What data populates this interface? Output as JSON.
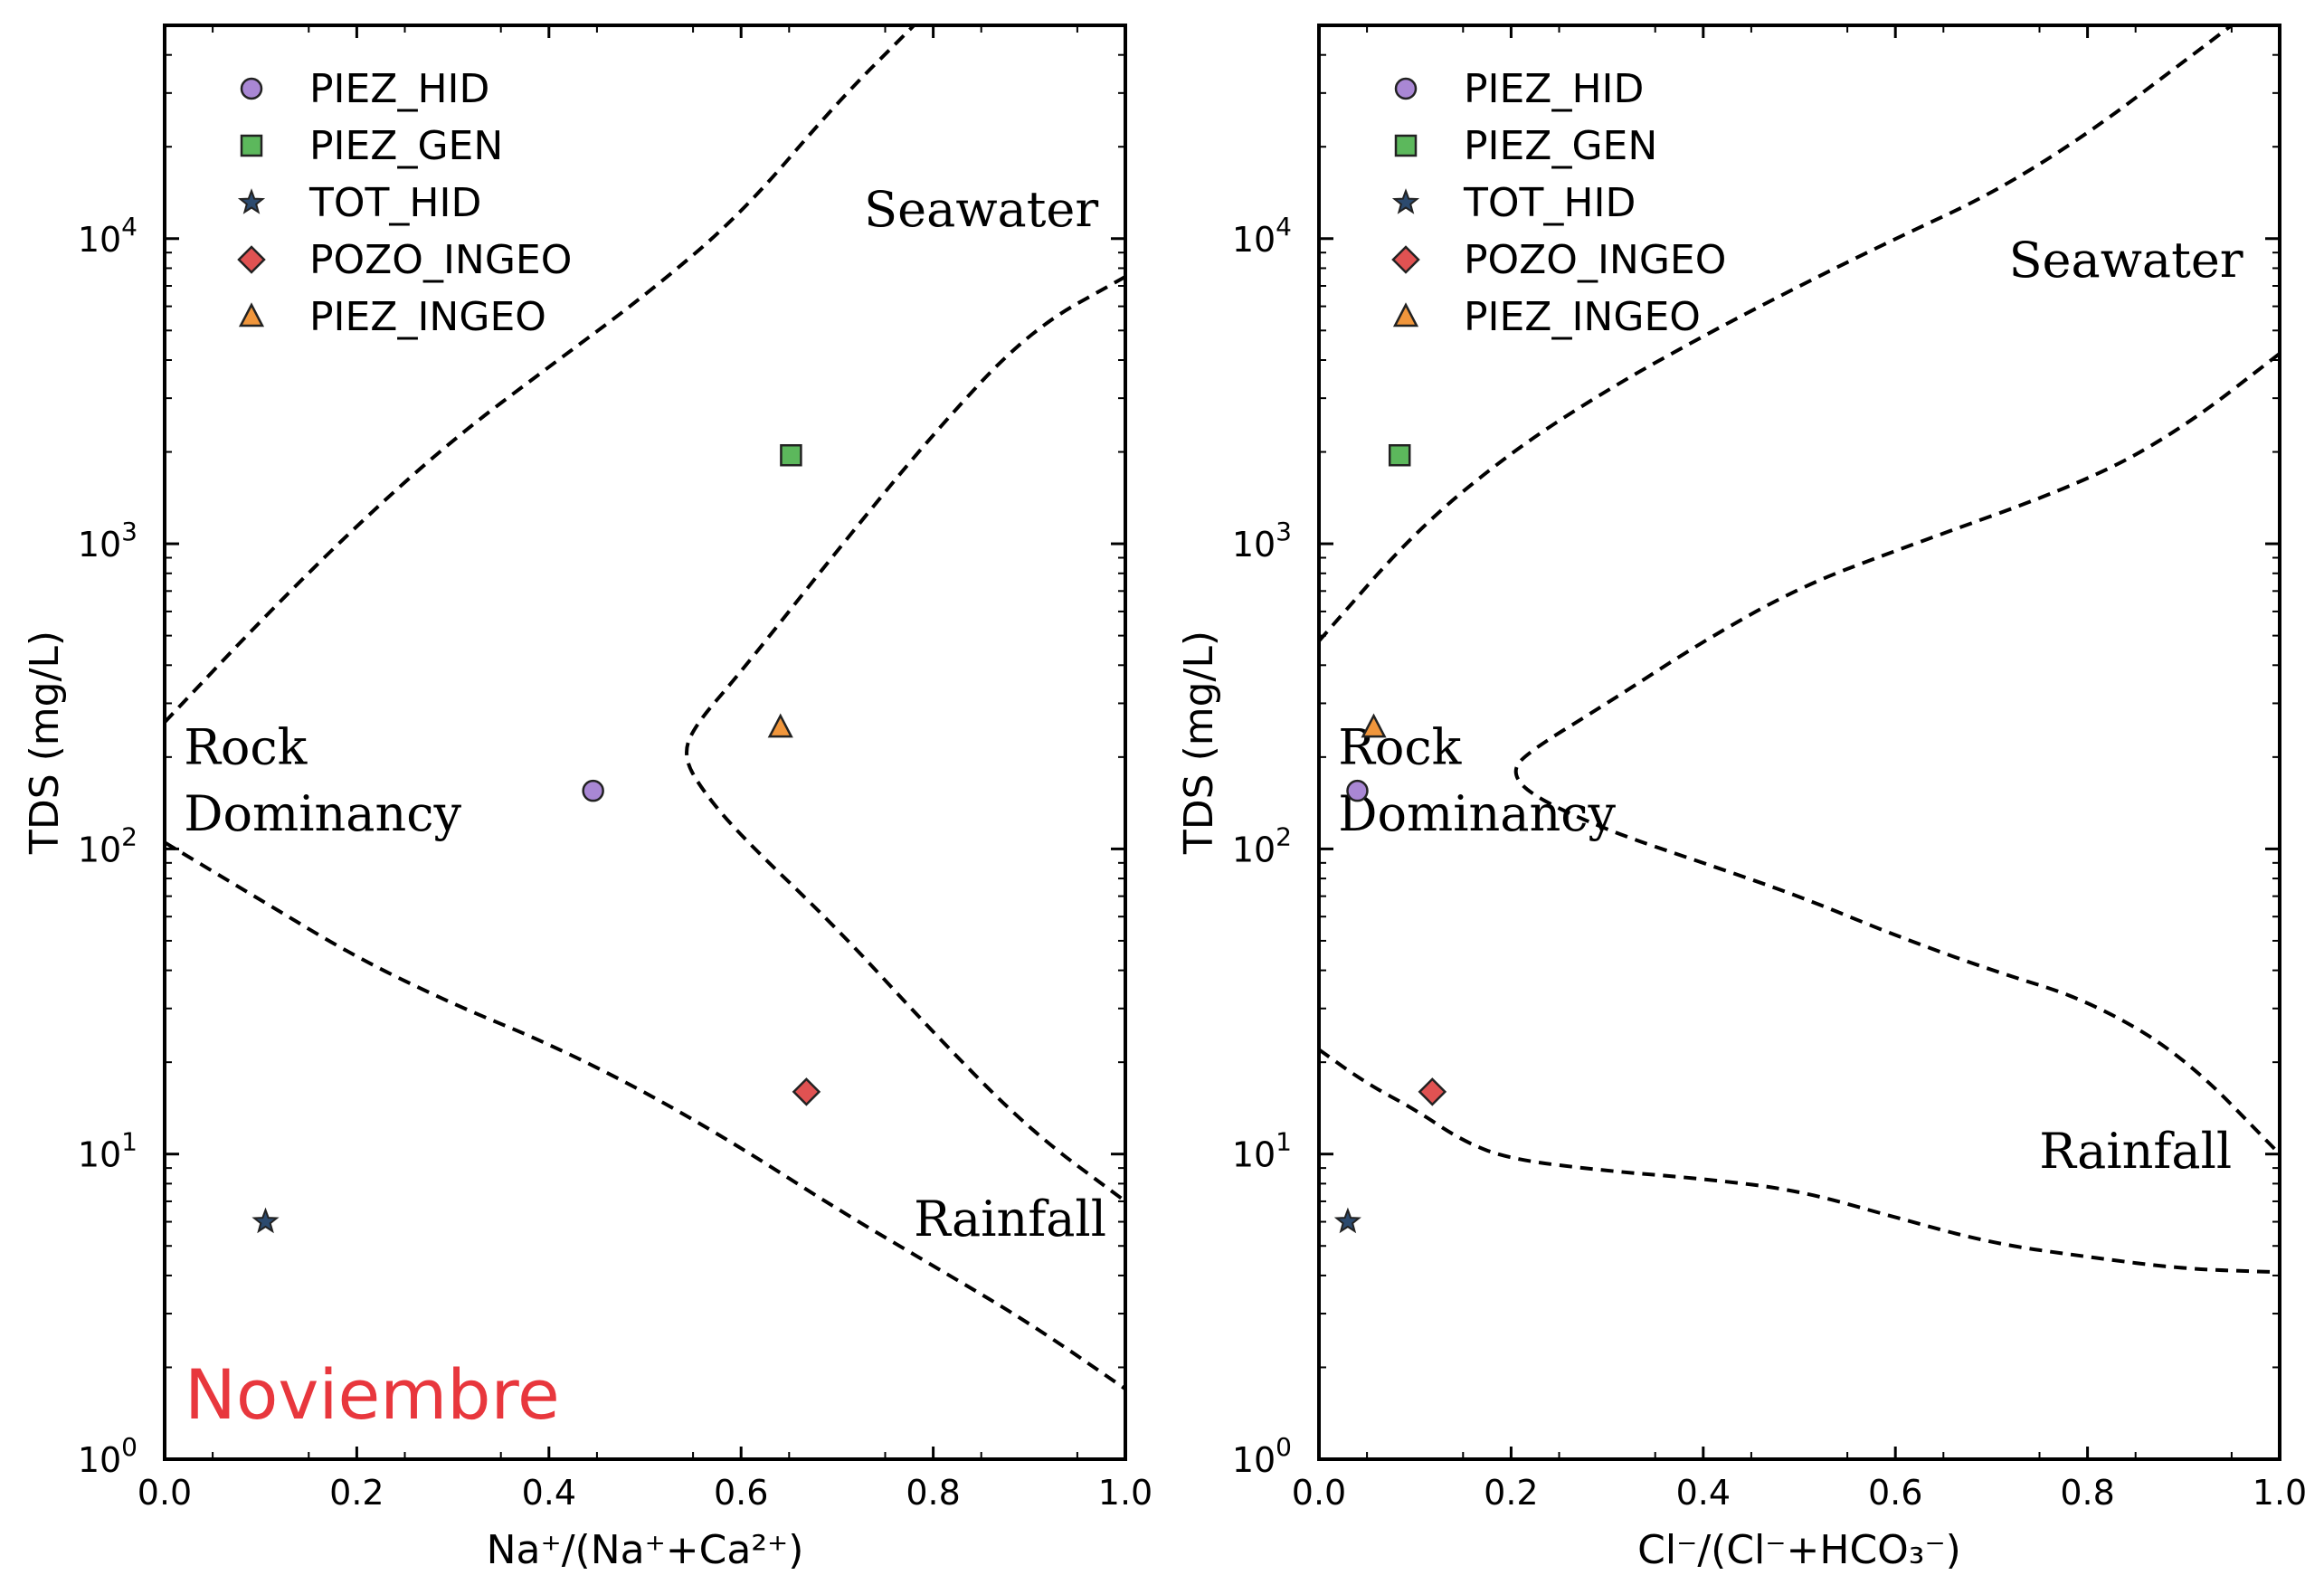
{
  "chart_data": [
    {
      "type": "scatter",
      "xlabel": "Na⁺/(Na⁺+Ca²⁺)",
      "ylabel": "TDS (mg/L)",
      "xlim": [
        0.0,
        1.0
      ],
      "ylim": [
        1,
        50000
      ],
      "yscale": "log",
      "x_ticks": [
        "0.0",
        "0.2",
        "0.4",
        "0.6",
        "0.8",
        "1.0"
      ],
      "y_ticks": [
        {
          "base": "10",
          "exp": "0"
        },
        {
          "base": "10",
          "exp": "1"
        },
        {
          "base": "10",
          "exp": "2"
        },
        {
          "base": "10",
          "exp": "3"
        },
        {
          "base": "10",
          "exp": "4"
        }
      ],
      "grid": false,
      "legend_position": "top-left",
      "series": [
        {
          "name": "PIEZ_HID",
          "marker": "circle",
          "color": "#a987d4",
          "points": [
            {
              "x": 0.446,
              "y": 155
            }
          ]
        },
        {
          "name": "PIEZ_GEN",
          "marker": "square",
          "color": "#5cb85c",
          "points": [
            {
              "x": 0.652,
              "y": 1950
            }
          ]
        },
        {
          "name": "TOT_HID",
          "marker": "star",
          "color": "#2c4a6e",
          "points": [
            {
              "x": 0.105,
              "y": 6.0
            }
          ]
        },
        {
          "name": "POZO_INGEO",
          "marker": "diamond",
          "color": "#e05252",
          "points": [
            {
              "x": 0.668,
              "y": 16
            }
          ]
        },
        {
          "name": "PIEZ_INGEO",
          "marker": "triangle",
          "color": "#f0963c",
          "points": [
            {
              "x": 0.641,
              "y": 250
            }
          ]
        }
      ],
      "boundaries": [
        {
          "points": [
            [
              0.0,
              260
            ],
            [
              0.1,
              560
            ],
            [
              0.2,
              1150
            ],
            [
              0.3,
              2200
            ],
            [
              0.4,
              3800
            ],
            [
              0.5,
              6500
            ],
            [
              0.6,
              12000
            ],
            [
              0.7,
              28000
            ],
            [
              0.78,
              50000
            ]
          ]
        },
        {
          "points": [
            [
              1.0,
              7500
            ],
            [
              0.9,
              5000
            ],
            [
              0.8,
              2300
            ],
            [
              0.7,
              950
            ],
            [
              0.6,
              380
            ],
            [
              0.55,
              250
            ],
            [
              0.54,
              200
            ],
            [
              0.56,
              155
            ],
            [
              0.6,
              110
            ],
            [
              0.7,
              55
            ],
            [
              0.8,
              25
            ],
            [
              0.9,
              12
            ],
            [
              1.0,
              7
            ]
          ]
        },
        {
          "points": [
            [
              0.0,
              105
            ],
            [
              0.1,
              68
            ],
            [
              0.2,
              44
            ],
            [
              0.3,
              31
            ],
            [
              0.4,
              23
            ],
            [
              0.5,
              16
            ],
            [
              0.6,
              10.5
            ],
            [
              0.7,
              6.6
            ],
            [
              0.8,
              4.3
            ],
            [
              0.9,
              2.8
            ],
            [
              1.0,
              1.7
            ]
          ]
        }
      ],
      "annotations": [
        {
          "text": "Seawater",
          "x": 0.85,
          "y": 11000
        },
        {
          "text": "Rock",
          "x": 0.02,
          "y": 190
        },
        {
          "text": "Dominancy",
          "x": 0.02,
          "y": 115
        },
        {
          "text": "Rainfall",
          "x": 0.88,
          "y": 5.4
        }
      ],
      "panel_tag": "Noviembre",
      "panel_tag_color": "#e8373d"
    },
    {
      "type": "scatter",
      "xlabel": "Cl⁻/(Cl⁻+HCO₃⁻)",
      "ylabel": "TDS (mg/L)",
      "xlim": [
        0.0,
        1.0
      ],
      "ylim": [
        1,
        50000
      ],
      "yscale": "log",
      "x_ticks": [
        "0.0",
        "0.2",
        "0.4",
        "0.6",
        "0.8",
        "1.0"
      ],
      "y_ticks": [
        {
          "base": "10",
          "exp": "0"
        },
        {
          "base": "10",
          "exp": "1"
        },
        {
          "base": "10",
          "exp": "2"
        },
        {
          "base": "10",
          "exp": "3"
        },
        {
          "base": "10",
          "exp": "4"
        }
      ],
      "grid": false,
      "legend_position": "top-left",
      "series": [
        {
          "name": "PIEZ_HID",
          "marker": "circle",
          "color": "#a987d4",
          "points": [
            {
              "x": 0.04,
              "y": 155
            }
          ]
        },
        {
          "name": "PIEZ_GEN",
          "marker": "square",
          "color": "#5cb85c",
          "points": [
            {
              "x": 0.084,
              "y": 1950
            }
          ]
        },
        {
          "name": "TOT_HID",
          "marker": "star",
          "color": "#2c4a6e",
          "points": [
            {
              "x": 0.03,
              "y": 6.0
            }
          ]
        },
        {
          "name": "POZO_INGEO",
          "marker": "diamond",
          "color": "#e05252",
          "points": [
            {
              "x": 0.118,
              "y": 16
            }
          ]
        },
        {
          "name": "PIEZ_INGEO",
          "marker": "triangle",
          "color": "#f0963c",
          "points": [
            {
              "x": 0.057,
              "y": 250
            }
          ]
        }
      ],
      "boundaries": [
        {
          "points": [
            [
              0.0,
              480
            ],
            [
              0.1,
              1100
            ],
            [
              0.2,
              2000
            ],
            [
              0.3,
              3200
            ],
            [
              0.4,
              4800
            ],
            [
              0.5,
              7000
            ],
            [
              0.6,
              10000
            ],
            [
              0.7,
              14000
            ],
            [
              0.8,
              22000
            ],
            [
              0.9,
              38000
            ],
            [
              0.95,
              50000
            ]
          ]
        },
        {
          "points": [
            [
              1.0,
              4200
            ],
            [
              0.9,
              2400
            ],
            [
              0.8,
              1600
            ],
            [
              0.6,
              950
            ],
            [
              0.5,
              720
            ],
            [
              0.4,
              480
            ],
            [
              0.3,
              300
            ],
            [
              0.22,
              210
            ],
            [
              0.2,
              180
            ],
            [
              0.22,
              150
            ],
            [
              0.3,
              115
            ],
            [
              0.4,
              90
            ],
            [
              0.5,
              70
            ],
            [
              0.6,
              52
            ],
            [
              0.7,
              40
            ],
            [
              0.8,
              32
            ],
            [
              0.9,
              21
            ],
            [
              1.0,
              10
            ]
          ]
        },
        {
          "points": [
            [
              0.0,
              22
            ],
            [
              0.05,
              17
            ],
            [
              0.1,
              14
            ],
            [
              0.15,
              11
            ],
            [
              0.2,
              9.6
            ],
            [
              0.3,
              8.8
            ],
            [
              0.4,
              8.3
            ],
            [
              0.5,
              7.6
            ],
            [
              0.6,
              6.2
            ],
            [
              0.7,
              5.1
            ],
            [
              0.8,
              4.6
            ],
            [
              0.9,
              4.2
            ],
            [
              1.0,
              4.1
            ]
          ]
        }
      ],
      "annotations": [
        {
          "text": "Seawater",
          "x": 0.84,
          "y": 7500
        },
        {
          "text": "Rock",
          "x": 0.02,
          "y": 190
        },
        {
          "text": "Dominancy",
          "x": 0.02,
          "y": 115
        },
        {
          "text": "Rainfall",
          "x": 0.85,
          "y": 9.0
        }
      ]
    }
  ]
}
